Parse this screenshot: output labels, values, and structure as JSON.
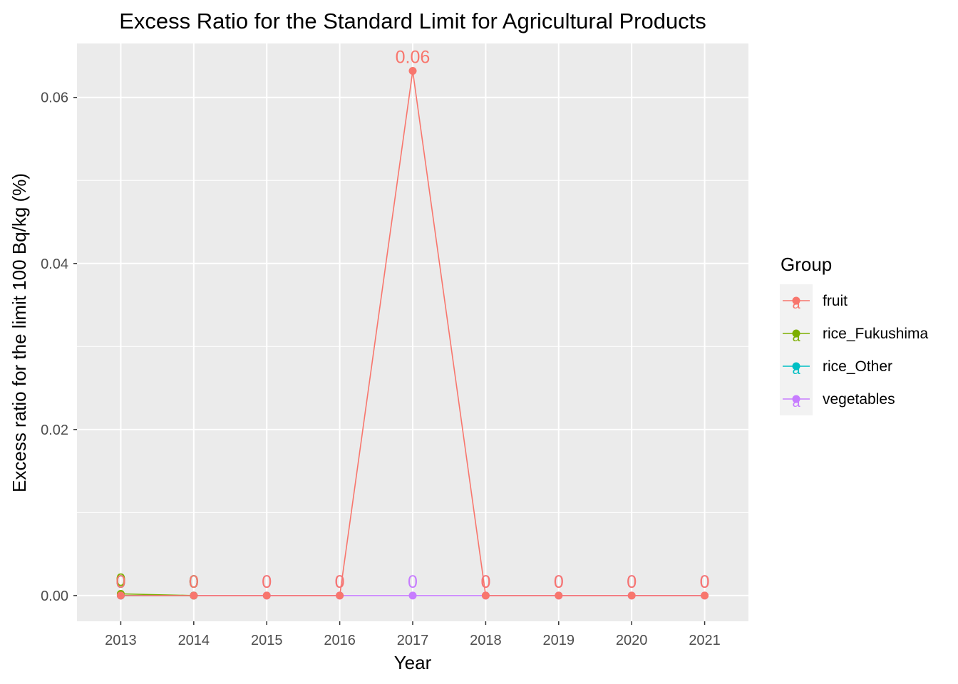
{
  "chart_data": {
    "type": "line",
    "title": "Excess Ratio for the Standard Limit for Agricultural Products",
    "xlabel": "Year",
    "ylabel": "Excess ratio for the limit 100 Bq/kg (%)",
    "x": [
      2013,
      2014,
      2015,
      2016,
      2017,
      2018,
      2019,
      2020,
      2021
    ],
    "xlim": [
      2012.4,
      2021.6
    ],
    "ylim": [
      -0.0031,
      0.0665
    ],
    "yticks": [
      0.0,
      0.02,
      0.04,
      0.06
    ],
    "ytick_labels": [
      "0.00",
      "0.02",
      "0.04",
      "0.06"
    ],
    "grid": true,
    "legend_title": "Group",
    "legend_position": "right",
    "series": [
      {
        "name": "fruit",
        "color": "#F8766D",
        "x": [
          2013,
          2014,
          2015,
          2016,
          2017,
          2018,
          2019,
          2020,
          2021
        ],
        "values": [
          0.0,
          0.0,
          0.0,
          0.0,
          0.0632,
          0.0,
          0.0,
          0.0,
          0.0
        ],
        "labels": [
          "0",
          "0",
          "0",
          "0",
          "0.06",
          "0",
          "0",
          "0",
          "0"
        ]
      },
      {
        "name": "rice_Fukushima",
        "color": "#7CAE00",
        "x": [
          2013,
          2014
        ],
        "values": [
          0.0002,
          0.0
        ],
        "labels": [
          "0",
          "0"
        ]
      },
      {
        "name": "rice_Other",
        "color": "#00BFC4",
        "x": [
          2013,
          2014
        ],
        "values": [
          0.0,
          0.0
        ],
        "labels": [
          "0",
          "0"
        ]
      },
      {
        "name": "vegetables",
        "color": "#C77CFF",
        "x": [
          2013,
          2014,
          2015,
          2016,
          2017,
          2018,
          2019,
          2020,
          2021
        ],
        "values": [
          0.0,
          0.0,
          0.0,
          0.0,
          0.0,
          0.0,
          0.0,
          0.0,
          0.0
        ],
        "labels": [
          "0",
          "0",
          "0",
          "0",
          "0",
          "0",
          "0",
          "0",
          "0"
        ]
      }
    ],
    "legend_key_glyph": "a"
  }
}
